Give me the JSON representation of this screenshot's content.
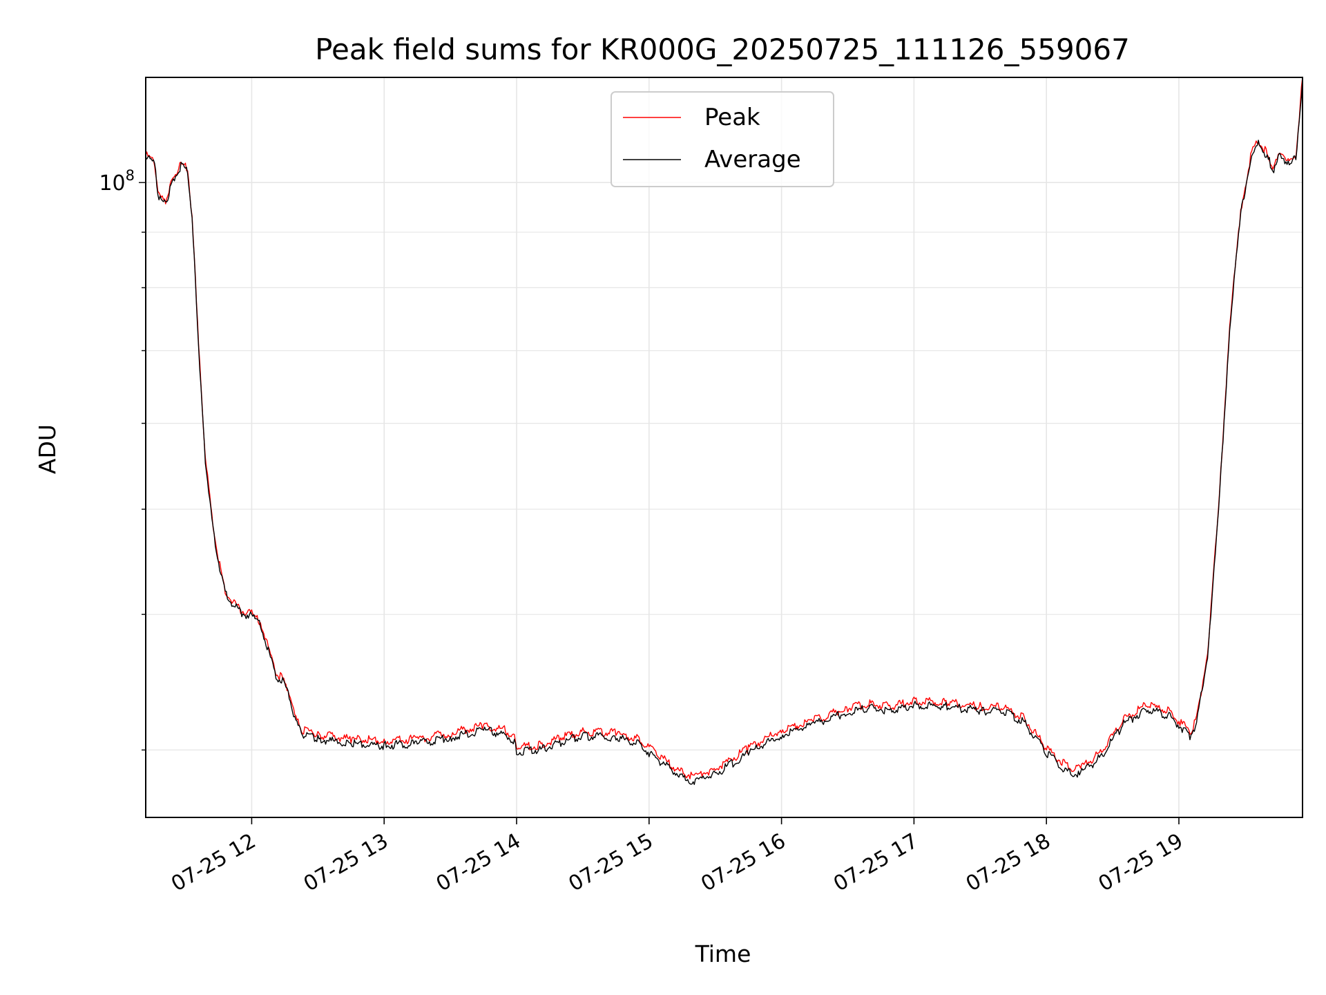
{
  "chart_data": {
    "type": "line",
    "title": "Peak field sums for KR000G_20250725_111126_559067",
    "xlabel": "Time",
    "ylabel": "ADU",
    "x_ticks": [
      "07-25 12",
      "07-25 13",
      "07-25 14",
      "07-25 15",
      "07-25 16",
      "07-25 17",
      "07-25 18",
      "07-25 19"
    ],
    "y_tick_labels": [
      {
        "base": "10",
        "exp": "8"
      }
    ],
    "y_scale": "log",
    "x_range": [
      "2025-07-25 11:12",
      "2025-07-25 19:56"
    ],
    "ylim": [
      26000000,
      125000000
    ],
    "grid": true,
    "legend_position": "upper center",
    "colors": {
      "peak": "#ff0000",
      "average": "#000000",
      "grid": "#e6e6e6"
    },
    "series": [
      {
        "name": "Peak",
        "color": "#ff0000",
        "x": [
          "2025-07-25 11:12",
          "2025-07-25 11:16",
          "2025-07-25 11:18",
          "2025-07-25 11:21",
          "2025-07-25 11:23",
          "2025-07-25 11:25",
          "2025-07-25 11:28",
          "2025-07-25 11:31",
          "2025-07-25 11:33",
          "2025-07-25 11:35",
          "2025-07-25 11:37",
          "2025-07-25 11:39",
          "2025-07-25 11:42",
          "2025-07-25 11:45",
          "2025-07-25 11:48",
          "2025-07-25 11:52",
          "2025-07-25 11:55",
          "2025-07-25 12:00",
          "2025-07-25 12:04",
          "2025-07-25 12:08",
          "2025-07-25 12:11",
          "2025-07-25 12:14",
          "2025-07-25 12:17",
          "2025-07-25 12:20",
          "2025-07-25 12:23",
          "2025-07-25 12:30",
          "2025-07-25 12:45",
          "2025-07-25 13:00",
          "2025-07-25 13:15",
          "2025-07-25 13:30",
          "2025-07-25 13:45",
          "2025-07-25 13:55",
          "2025-07-25 13:59",
          "2025-07-25 14:00",
          "2025-07-25 14:10",
          "2025-07-25 14:20",
          "2025-07-25 14:30",
          "2025-07-25 14:45",
          "2025-07-25 14:55",
          "2025-07-25 15:05",
          "2025-07-25 15:15",
          "2025-07-25 15:20",
          "2025-07-25 15:30",
          "2025-07-25 15:45",
          "2025-07-25 16:00",
          "2025-07-25 16:15",
          "2025-07-25 16:30",
          "2025-07-25 16:40",
          "2025-07-25 16:50",
          "2025-07-25 17:00",
          "2025-07-25 17:15",
          "2025-07-25 17:30",
          "2025-07-25 17:40",
          "2025-07-25 17:50",
          "2025-07-25 18:00",
          "2025-07-25 18:10",
          "2025-07-25 18:15",
          "2025-07-25 18:25",
          "2025-07-25 18:35",
          "2025-07-25 18:45",
          "2025-07-25 18:55",
          "2025-07-25 19:05",
          "2025-07-25 19:08",
          "2025-07-25 19:13",
          "2025-07-25 19:18",
          "2025-07-25 19:23",
          "2025-07-25 19:28",
          "2025-07-25 19:33",
          "2025-07-25 19:36",
          "2025-07-25 19:39",
          "2025-07-25 19:41",
          "2025-07-25 19:43",
          "2025-07-25 19:46",
          "2025-07-25 19:50",
          "2025-07-25 19:53",
          "2025-07-25 19:56"
        ],
        "y": [
          106000000,
          104500000,
          97000000,
          96000000,
          99000000,
          101500000,
          104000000,
          103000000,
          93000000,
          78000000,
          65000000,
          56000000,
          49000000,
          45000000,
          42000000,
          41000000,
          40300000,
          40100000,
          39400000,
          37000000,
          35300000,
          34900000,
          33900000,
          32000000,
          31300000,
          31000000,
          30700000,
          30600000,
          30700000,
          31100000,
          31600000,
          31300000,
          30800000,
          30200000,
          30300000,
          30800000,
          31200000,
          31100000,
          30700000,
          29600000,
          28600000,
          28400000,
          28800000,
          30100000,
          31300000,
          32000000,
          32800000,
          33100000,
          32900000,
          33300000,
          33200000,
          32900000,
          32900000,
          32100000,
          30100000,
          28900000,
          28800000,
          29900000,
          32000000,
          33000000,
          32600000,
          31200000,
          32000000,
          37000000,
          50000000,
          74000000,
          94000000,
          107000000,
          109000000,
          107000000,
          105000000,
          103000000,
          107000000,
          104000000,
          106000000,
          125000000
        ]
      },
      {
        "name": "Average",
        "color": "#000000",
        "x": [
          "2025-07-25 11:12",
          "2025-07-25 11:16",
          "2025-07-25 11:18",
          "2025-07-25 11:21",
          "2025-07-25 11:23",
          "2025-07-25 11:25",
          "2025-07-25 11:28",
          "2025-07-25 11:31",
          "2025-07-25 11:33",
          "2025-07-25 11:35",
          "2025-07-25 11:37",
          "2025-07-25 11:39",
          "2025-07-25 11:42",
          "2025-07-25 11:45",
          "2025-07-25 11:48",
          "2025-07-25 11:52",
          "2025-07-25 11:55",
          "2025-07-25 12:00",
          "2025-07-25 12:04",
          "2025-07-25 12:08",
          "2025-07-25 12:11",
          "2025-07-25 12:14",
          "2025-07-25 12:17",
          "2025-07-25 12:20",
          "2025-07-25 12:23",
          "2025-07-25 12:30",
          "2025-07-25 12:45",
          "2025-07-25 13:00",
          "2025-07-25 13:15",
          "2025-07-25 13:30",
          "2025-07-25 13:45",
          "2025-07-25 13:55",
          "2025-07-25 13:59",
          "2025-07-25 14:00",
          "2025-07-25 14:10",
          "2025-07-25 14:20",
          "2025-07-25 14:30",
          "2025-07-25 14:45",
          "2025-07-25 14:55",
          "2025-07-25 15:05",
          "2025-07-25 15:15",
          "2025-07-25 15:20",
          "2025-07-25 15:30",
          "2025-07-25 15:45",
          "2025-07-25 16:00",
          "2025-07-25 16:15",
          "2025-07-25 16:30",
          "2025-07-25 16:40",
          "2025-07-25 16:50",
          "2025-07-25 17:00",
          "2025-07-25 17:15",
          "2025-07-25 17:30",
          "2025-07-25 17:40",
          "2025-07-25 17:50",
          "2025-07-25 18:00",
          "2025-07-25 18:10",
          "2025-07-25 18:15",
          "2025-07-25 18:25",
          "2025-07-25 18:35",
          "2025-07-25 18:45",
          "2025-07-25 18:55",
          "2025-07-25 19:05",
          "2025-07-25 19:08",
          "2025-07-25 19:13",
          "2025-07-25 19:18",
          "2025-07-25 19:23",
          "2025-07-25 19:28",
          "2025-07-25 19:33",
          "2025-07-25 19:36",
          "2025-07-25 19:39",
          "2025-07-25 19:41",
          "2025-07-25 19:43",
          "2025-07-25 19:46",
          "2025-07-25 19:50",
          "2025-07-25 19:53",
          "2025-07-25 19:56"
        ],
        "y": [
          105500000,
          104000000,
          96500000,
          95500000,
          98500000,
          101000000,
          103500000,
          102500000,
          92500000,
          77500000,
          64500000,
          55500000,
          48700000,
          44700000,
          41800000,
          40800000,
          40100000,
          39900000,
          39200000,
          36800000,
          35100000,
          34700000,
          33700000,
          31800000,
          31000000,
          30700000,
          30400000,
          30300000,
          30400000,
          30800000,
          31300000,
          31000000,
          30500000,
          29900000,
          30000000,
          30500000,
          30900000,
          30800000,
          30400000,
          29300000,
          28300000,
          28100000,
          28500000,
          29800000,
          31000000,
          31700000,
          32500000,
          32800000,
          32600000,
          33000000,
          32900000,
          32600000,
          32600000,
          31800000,
          29800000,
          28600000,
          28500000,
          29600000,
          31700000,
          32700000,
          32300000,
          30900000,
          31700000,
          36700000,
          49700000,
          73500000,
          93500000,
          106500000,
          108500000,
          106500000,
          104500000,
          102500000,
          106500000,
          103500000,
          105500000,
          124500000
        ]
      }
    ]
  }
}
